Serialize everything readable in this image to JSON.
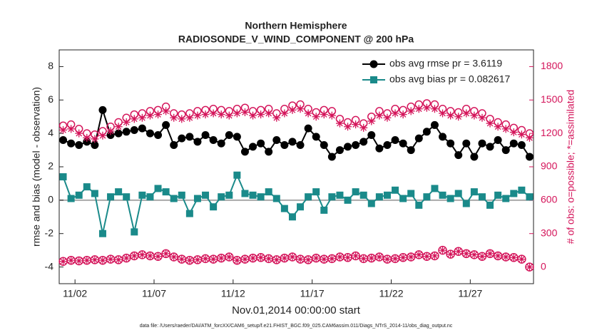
{
  "chart_data": {
    "type": "line",
    "title": "Northern Hemisphere",
    "subtitle": "RADIOSONDE_V_WIND_COMPONENT @ 200 hPa",
    "x_label": "Nov.01,2014 00:00:00 start",
    "y_label": "rmse and bias (model - observation)",
    "y2_label": "# of obs: o=possible; *=assimilated",
    "footnote": "data file: /Users/raeder/DAI/ATM_forcXX/CAM6_setup/f.e21.FHIST_BGC.f09_025.CAM6assim.011/Diags_NTrS_2014-11/obs_diag_output.nc",
    "xlim": [
      1,
      31
    ],
    "xticks": [
      {
        "value": 2,
        "label": "11/02"
      },
      {
        "value": 7,
        "label": "11/07"
      },
      {
        "value": 12,
        "label": "11/12"
      },
      {
        "value": 17,
        "label": "11/17"
      },
      {
        "value": 22,
        "label": "11/22"
      },
      {
        "value": 27,
        "label": "11/27"
      }
    ],
    "ylim": [
      -5,
      9
    ],
    "yticks": [
      -4,
      -2,
      0,
      2,
      4,
      6,
      8
    ],
    "y2lim": [
      -150,
      1950
    ],
    "y2ticks": [
      0,
      300,
      600,
      900,
      1200,
      1500,
      1800
    ],
    "zero_line": true,
    "legend": "upper right",
    "x": [
      1.25,
      1.75,
      2.25,
      2.75,
      3.25,
      3.75,
      4.25,
      4.75,
      5.25,
      5.75,
      6.25,
      6.75,
      7.25,
      7.75,
      8.25,
      8.75,
      9.25,
      9.75,
      10.25,
      10.75,
      11.25,
      11.75,
      12.25,
      12.75,
      13.25,
      13.75,
      14.25,
      14.75,
      15.25,
      15.75,
      16.25,
      16.75,
      17.25,
      17.75,
      18.25,
      18.75,
      19.25,
      19.75,
      20.25,
      20.75,
      21.25,
      21.75,
      22.25,
      22.75,
      23.25,
      23.75,
      24.25,
      24.75,
      25.25,
      25.75,
      26.25,
      26.75,
      27.25,
      27.75,
      28.25,
      28.75,
      29.25,
      29.75,
      30.25,
      30.75
    ],
    "series": [
      {
        "name": "obs avg rmse pr = 3.6119",
        "color": "#000000",
        "marker": "circle",
        "line": true,
        "values": [
          3.6,
          3.4,
          3.3,
          3.5,
          3.3,
          5.4,
          3.9,
          4.0,
          4.1,
          4.2,
          4.3,
          4.0,
          3.9,
          4.5,
          3.3,
          3.7,
          3.8,
          3.5,
          3.9,
          3.6,
          3.4,
          3.9,
          3.8,
          2.9,
          3.2,
          3.4,
          2.9,
          3.6,
          3.3,
          3.5,
          3.3,
          4.3,
          3.8,
          3.3,
          2.6,
          3.0,
          3.2,
          3.3,
          3.5,
          3.9,
          3.1,
          3.3,
          3.6,
          3.4,
          3.0,
          3.7,
          4.1,
          4.5,
          3.8,
          3.4,
          2.7,
          3.4,
          2.6,
          3.4,
          3.2,
          3.6,
          3.0,
          3.4,
          3.3,
          2.6
        ]
      },
      {
        "name": "obs avg bias pr = 0.082617",
        "color": "#1a8a8a",
        "marker": "square",
        "line": true,
        "values": [
          1.4,
          0.1,
          0.3,
          0.8,
          0.4,
          -2.0,
          0.2,
          0.5,
          0.2,
          -1.9,
          0.3,
          0.2,
          0.7,
          0.5,
          0.1,
          0.3,
          -0.8,
          0.1,
          0.3,
          -0.4,
          0.2,
          0.3,
          1.5,
          0.4,
          0.3,
          0.2,
          0.5,
          0.1,
          -0.5,
          -1.0,
          -0.4,
          0.2,
          0.5,
          -0.6,
          0.2,
          0.3,
          0.0,
          0.5,
          0.3,
          -0.2,
          0.2,
          0.3,
          0.6,
          0.1,
          0.4,
          -0.3,
          0.2,
          0.7,
          0.3,
          0.1,
          0.4,
          -0.2,
          0.5,
          0.2,
          -0.3,
          0.3,
          0.1,
          0.4,
          0.6,
          0.2
        ]
      },
      {
        "color": "#d4145a",
        "marker": "open-circle",
        "axis": "y2",
        "values": [
          1270,
          1280,
          1240,
          1200,
          1190,
          1220,
          1260,
          1300,
          1340,
          1370,
          1380,
          1400,
          1410,
          1440,
          1380,
          1370,
          1380,
          1400,
          1410,
          1420,
          1410,
          1400,
          1420,
          1430,
          1400,
          1410,
          1420,
          1380,
          1420,
          1450,
          1460,
          1420,
          1390,
          1410,
          1400,
          1330,
          1300,
          1320,
          1290,
          1350,
          1400,
          1380,
          1420,
          1410,
          1440,
          1460,
          1470,
          1460,
          1420,
          1400,
          1390,
          1420,
          1400,
          1380,
          1330,
          1300,
          1280,
          1250,
          1230,
          1200
        ]
      },
      {
        "color": "#d4145a",
        "marker": "asterisk",
        "axis": "y2",
        "values": [
          1230,
          1240,
          1200,
          1160,
          1150,
          1180,
          1220,
          1260,
          1300,
          1330,
          1340,
          1360,
          1370,
          1400,
          1340,
          1330,
          1340,
          1360,
          1370,
          1380,
          1370,
          1360,
          1380,
          1390,
          1360,
          1370,
          1380,
          1340,
          1380,
          1410,
          1420,
          1380,
          1350,
          1370,
          1360,
          1290,
          1260,
          1280,
          1250,
          1310,
          1360,
          1340,
          1380,
          1370,
          1400,
          1420,
          1430,
          1420,
          1380,
          1360,
          1350,
          1380,
          1360,
          1340,
          1290,
          1260,
          1240,
          1210,
          1190,
          1160
        ]
      },
      {
        "color": "#d4145a",
        "marker": "circle-asterisk",
        "axis": "y2",
        "values": [
          50,
          60,
          55,
          60,
          65,
          60,
          70,
          65,
          80,
          100,
          110,
          100,
          95,
          120,
          90,
          70,
          60,
          65,
          75,
          70,
          80,
          90,
          60,
          70,
          80,
          85,
          75,
          65,
          80,
          90,
          70,
          65,
          80,
          70,
          75,
          90,
          85,
          100,
          75,
          80,
          90,
          70,
          75,
          85,
          90,
          110,
          95,
          100,
          150,
          115,
          140,
          120,
          110,
          95,
          120,
          100,
          90,
          85,
          70,
          0
        ]
      }
    ]
  }
}
